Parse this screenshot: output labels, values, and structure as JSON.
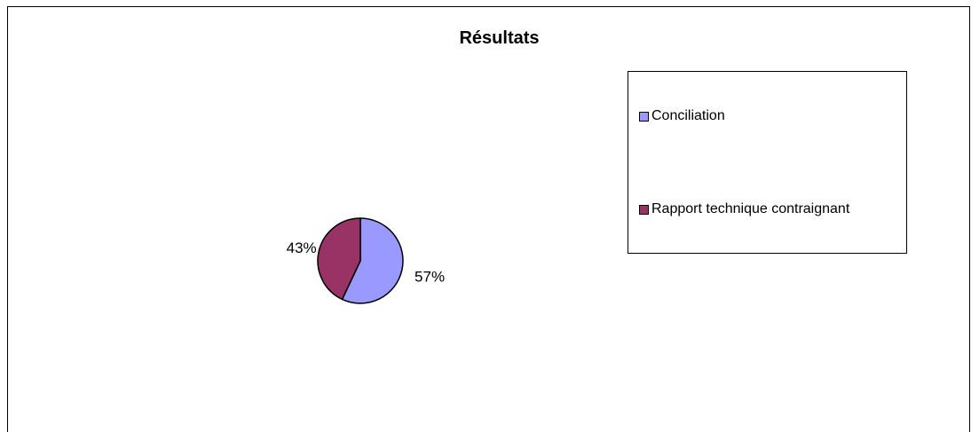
{
  "chart_data": {
    "type": "pie",
    "title": "Résultats",
    "categories": [
      "Conciliation",
      "Rapport technique contraignant"
    ],
    "values": [
      57,
      43
    ],
    "labels": [
      "57%",
      "43%"
    ],
    "colors": [
      "#9999ff",
      "#993366"
    ],
    "legend_position": "right"
  }
}
